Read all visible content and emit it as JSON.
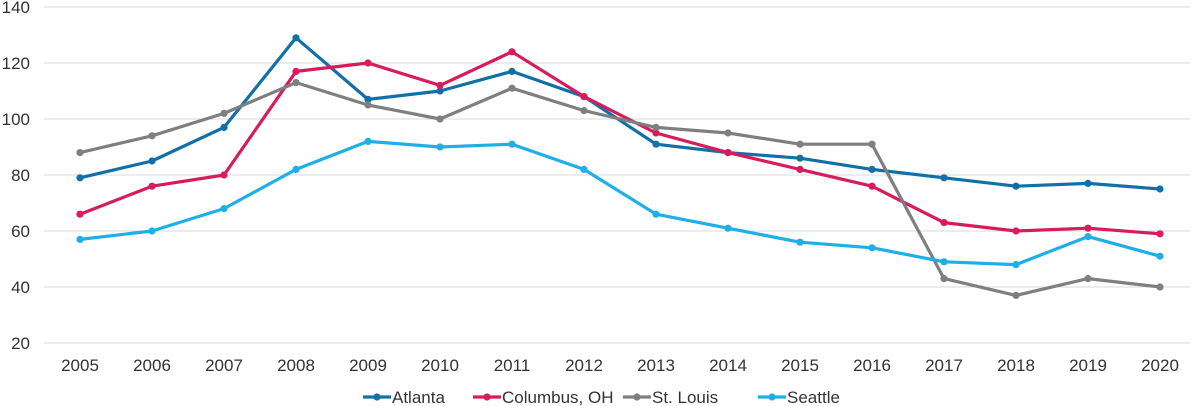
{
  "chart_data": {
    "type": "line",
    "title": "",
    "xlabel": "",
    "ylabel": "",
    "categories": [
      "2005",
      "2006",
      "2007",
      "2008",
      "2009",
      "2010",
      "2011",
      "2012",
      "2013",
      "2014",
      "2015",
      "2016",
      "2017",
      "2018",
      "2019",
      "2020"
    ],
    "ylim": [
      20,
      140
    ],
    "yticks": [
      20,
      40,
      60,
      80,
      100,
      120,
      140
    ],
    "grid": "horizontal",
    "legend_position": "bottom",
    "series": [
      {
        "name": "Atlanta",
        "color": "#1170a8",
        "values": [
          79,
          85,
          97,
          129,
          107,
          110,
          117,
          108,
          91,
          88,
          86,
          82,
          79,
          76,
          77,
          75
        ]
      },
      {
        "name": "Columbus, OH",
        "color": "#d81b5a",
        "values": [
          66,
          76,
          80,
          117,
          120,
          112,
          124,
          108,
          95,
          88,
          82,
          76,
          63,
          60,
          61,
          59
        ]
      },
      {
        "name": "St. Louis",
        "color": "#7f7f7f",
        "values": [
          88,
          94,
          102,
          113,
          105,
          100,
          111,
          103,
          97,
          95,
          91,
          91,
          43,
          37,
          43,
          40
        ]
      },
      {
        "name": "Seattle",
        "color": "#1eaee8",
        "values": [
          57,
          60,
          68,
          82,
          92,
          90,
          91,
          82,
          66,
          61,
          56,
          54,
          49,
          48,
          58,
          51
        ]
      }
    ]
  }
}
